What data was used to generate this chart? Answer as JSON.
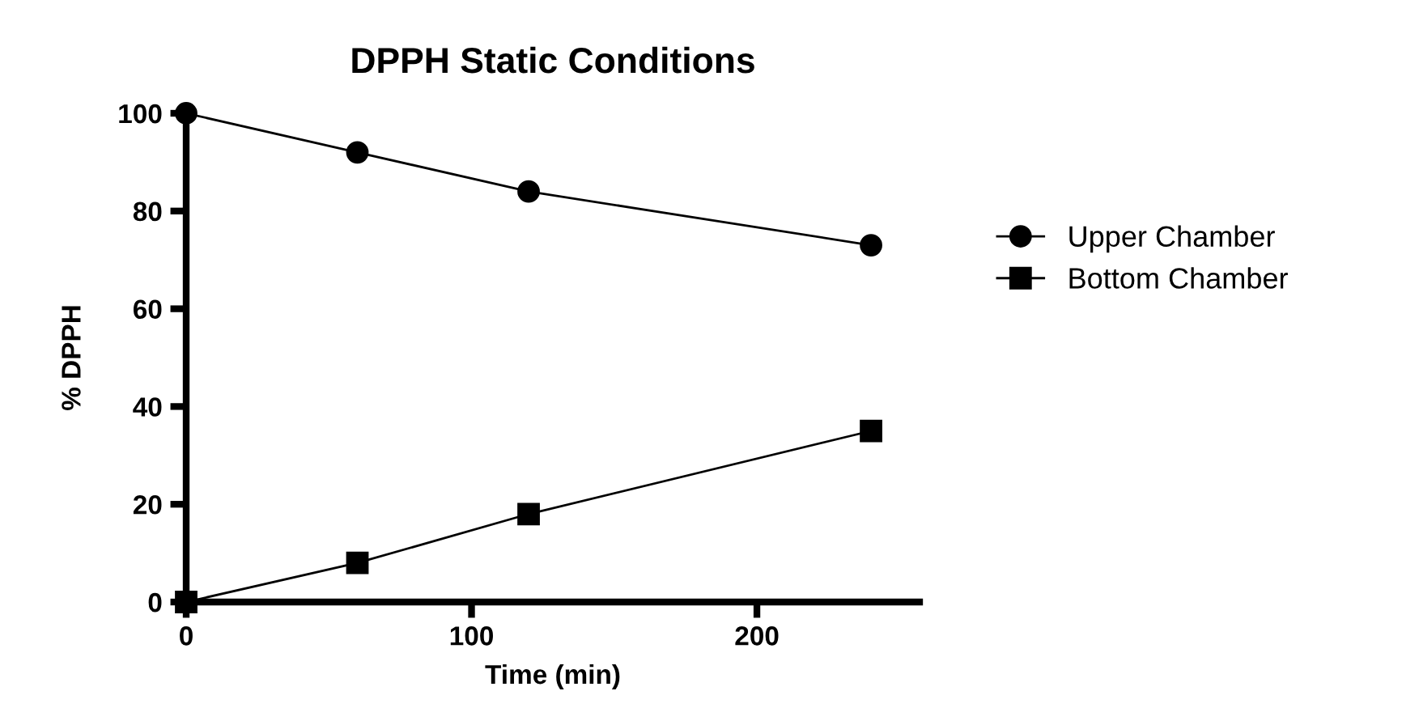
{
  "chart_data": {
    "type": "line",
    "title": "DPPH Static Conditions",
    "xlabel": "Time (min)",
    "ylabel": "% DPPH",
    "x": [
      0,
      60,
      120,
      240
    ],
    "series": [
      {
        "name": "Upper Chamber",
        "color": "#000000",
        "marker": "circle",
        "values": [
          100,
          92,
          84,
          73
        ]
      },
      {
        "name": "Bottom Chamber",
        "color": "#000000",
        "marker": "square",
        "values": [
          0,
          8,
          18,
          35
        ]
      }
    ],
    "xlim": [
      0,
      257
    ],
    "xticks": [
      0,
      100,
      200
    ],
    "ylim": [
      0,
      100
    ],
    "yticks": [
      0,
      20,
      40,
      60,
      80,
      100
    ],
    "grid": false,
    "legend": "right",
    "line_style": "solid"
  }
}
